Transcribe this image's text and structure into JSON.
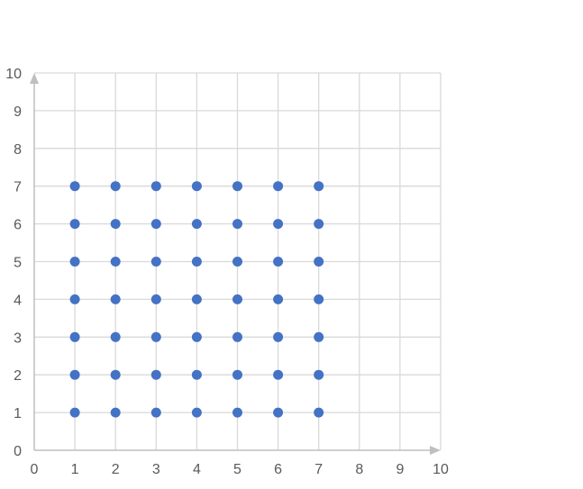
{
  "chart_data": {
    "type": "scatter",
    "title": "",
    "xlabel": "",
    "ylabel": "",
    "xlim": [
      0,
      10
    ],
    "ylim": [
      0,
      10
    ],
    "x_ticks": [
      0,
      1,
      2,
      3,
      4,
      5,
      6,
      7,
      8,
      9,
      10
    ],
    "y_ticks": [
      0,
      1,
      2,
      3,
      4,
      5,
      6,
      7,
      8,
      9,
      10
    ],
    "grid": true,
    "legend": "none",
    "series": [
      {
        "color": "#4472C4",
        "points": [
          [
            1,
            1
          ],
          [
            2,
            1
          ],
          [
            3,
            1
          ],
          [
            4,
            1
          ],
          [
            5,
            1
          ],
          [
            6,
            1
          ],
          [
            7,
            1
          ],
          [
            1,
            2
          ],
          [
            2,
            2
          ],
          [
            3,
            2
          ],
          [
            4,
            2
          ],
          [
            5,
            2
          ],
          [
            6,
            2
          ],
          [
            7,
            2
          ],
          [
            1,
            3
          ],
          [
            2,
            3
          ],
          [
            3,
            3
          ],
          [
            4,
            3
          ],
          [
            5,
            3
          ],
          [
            6,
            3
          ],
          [
            7,
            3
          ],
          [
            1,
            4
          ],
          [
            2,
            4
          ],
          [
            3,
            4
          ],
          [
            4,
            4
          ],
          [
            5,
            4
          ],
          [
            6,
            4
          ],
          [
            7,
            4
          ],
          [
            1,
            5
          ],
          [
            2,
            5
          ],
          [
            3,
            5
          ],
          [
            4,
            5
          ],
          [
            5,
            5
          ],
          [
            6,
            5
          ],
          [
            7,
            5
          ],
          [
            1,
            6
          ],
          [
            2,
            6
          ],
          [
            3,
            6
          ],
          [
            4,
            6
          ],
          [
            5,
            6
          ],
          [
            6,
            6
          ],
          [
            7,
            6
          ],
          [
            1,
            7
          ],
          [
            2,
            7
          ],
          [
            3,
            7
          ],
          [
            4,
            7
          ],
          [
            5,
            7
          ],
          [
            6,
            7
          ],
          [
            7,
            7
          ]
        ]
      }
    ],
    "colors": {
      "grid": "#D9D9D9",
      "axis": "#BFBFBF",
      "tick_label": "#595959"
    }
  }
}
